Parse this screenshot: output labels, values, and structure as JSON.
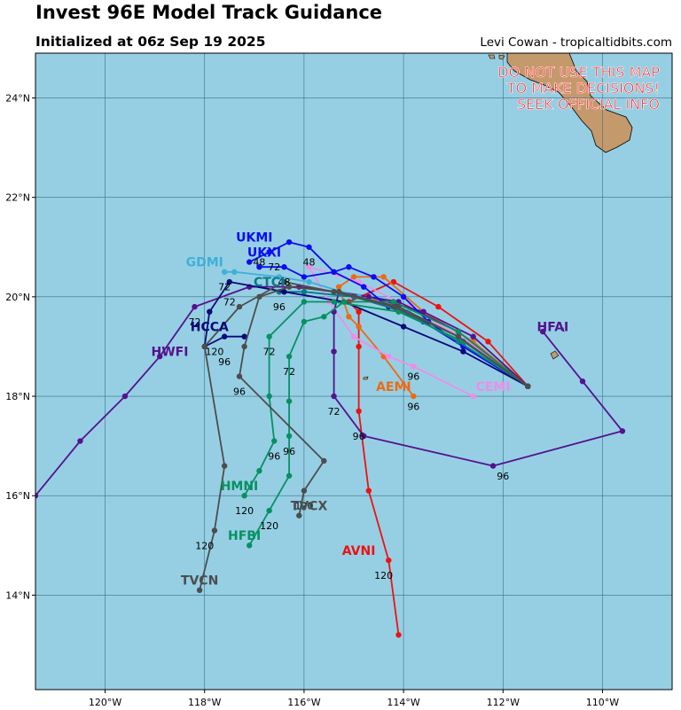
{
  "header": {
    "title": "Invest 96E Model Track Guidance",
    "subtitle": "Initialized at 06z Sep 19 2025",
    "credit": "Levi Cowan - tropicaltidbits.com"
  },
  "warning": [
    "DO NOT USE THIS MAP",
    "TO MAKE DECISIONS!",
    "SEEK OFFICIAL INFO"
  ],
  "colors": {
    "ocean": "#96cfe4",
    "land": "#c49a6c",
    "warning": "#ff1a1a"
  },
  "chart_data": {
    "type": "map-tracks",
    "lon_range": [
      -121.4,
      -108.6
    ],
    "lat_range": [
      12.1,
      24.9
    ],
    "grid": true,
    "x_ticks": [
      {
        "value": -120,
        "label": "120°W"
      },
      {
        "value": -118,
        "label": "118°W"
      },
      {
        "value": -116,
        "label": "116°W"
      },
      {
        "value": -114,
        "label": "114°W"
      },
      {
        "value": -112,
        "label": "112°W"
      },
      {
        "value": -110,
        "label": "110°W"
      }
    ],
    "y_ticks": [
      {
        "value": 14,
        "label": "14°N"
      },
      {
        "value": 16,
        "label": "16°N"
      },
      {
        "value": 18,
        "label": "18°N"
      },
      {
        "value": 20,
        "label": "20°N"
      },
      {
        "value": 22,
        "label": "22°N"
      },
      {
        "value": 24,
        "label": "24°N"
      }
    ],
    "origin": [
      -111.5,
      18.2
    ],
    "series": [
      {
        "name": "AVNI",
        "color": "#ee1111",
        "track": [
          [
            -111.5,
            18.2
          ],
          [
            -112.3,
            19.1
          ],
          [
            -113.3,
            19.8
          ],
          [
            -114.2,
            20.3
          ],
          [
            -115.1,
            19.9
          ],
          [
            -114.9,
            19.7
          ],
          [
            -114.9,
            19.0
          ],
          [
            -114.9,
            17.7
          ],
          [
            -114.7,
            16.1
          ],
          [
            -114.3,
            14.7
          ],
          [
            -114.1,
            13.2
          ]
        ],
        "label_pos": [
          -114.9,
          14.9
        ],
        "hour_labels": [
          {
            "text": "96",
            "pos": [
              -114.9,
              17.2
            ]
          },
          {
            "text": "120",
            "pos": [
              -114.4,
              14.4
            ]
          }
        ]
      },
      {
        "name": "AEMI",
        "color": "#ee6a11",
        "track": [
          [
            -111.5,
            18.2
          ],
          [
            -112.6,
            19.1
          ],
          [
            -113.6,
            19.7
          ],
          [
            -114.4,
            20.4
          ],
          [
            -115.0,
            20.4
          ],
          [
            -115.3,
            20.2
          ],
          [
            -115.1,
            19.6
          ],
          [
            -114.9,
            19.4
          ],
          [
            -114.4,
            18.8
          ],
          [
            -113.8,
            18.0
          ]
        ],
        "label_pos": [
          -114.2,
          18.2
        ],
        "hour_labels": [
          {
            "text": "96",
            "pos": [
              -113.8,
              17.8
            ]
          }
        ]
      },
      {
        "name": "CEMI",
        "color": "#f08ce8",
        "track": [
          [
            -111.5,
            18.2
          ],
          [
            -112.7,
            19.1
          ],
          [
            -113.9,
            19.8
          ],
          [
            -114.9,
            20.3
          ],
          [
            -115.9,
            20.6
          ],
          [
            -115.5,
            19.9
          ],
          [
            -115.0,
            19.2
          ],
          [
            -114.3,
            18.8
          ],
          [
            -113.8,
            18.6
          ],
          [
            -112.6,
            18.0
          ]
        ],
        "label_pos": [
          -112.2,
          18.2
        ],
        "hour_labels": [
          {
            "text": "96",
            "pos": [
              -113.8,
              18.4
            ]
          }
        ]
      },
      {
        "name": "HFAI",
        "color": "#55128f",
        "track": [
          [
            -111.5,
            18.2
          ],
          [
            -112.9,
            19.3
          ],
          [
            -114.1,
            19.9
          ],
          [
            -115.3,
            20.1
          ],
          [
            -115.4,
            19.7
          ],
          [
            -115.4,
            18.9
          ],
          [
            -115.4,
            18.0
          ],
          [
            -114.8,
            17.2
          ],
          [
            -112.2,
            16.6
          ],
          [
            -109.6,
            17.3
          ],
          [
            -110.4,
            18.3
          ],
          [
            -111.2,
            19.3
          ]
        ],
        "label_pos": [
          -111.0,
          19.4
        ],
        "hour_labels": [
          {
            "text": "72",
            "pos": [
              -115.4,
              17.7
            ]
          },
          {
            "text": "96",
            "pos": [
              -112.0,
              16.4
            ]
          }
        ]
      },
      {
        "name": "HWFI",
        "color": "#55128f",
        "track": [
          [
            -111.5,
            18.2
          ],
          [
            -112.6,
            19.2
          ],
          [
            -113.6,
            19.7
          ],
          [
            -114.7,
            20.0
          ],
          [
            -116.1,
            20.2
          ],
          [
            -117.1,
            20.2
          ],
          [
            -118.2,
            19.8
          ],
          [
            -118.9,
            18.8
          ],
          [
            -119.6,
            18.0
          ],
          [
            -120.5,
            17.1
          ],
          [
            -121.4,
            16.0
          ]
        ],
        "label_pos": [
          -118.7,
          18.9
        ],
        "hour_labels": [
          {
            "text": "72",
            "pos": [
              -118.2,
              19.5
            ]
          }
        ]
      },
      {
        "name": "UKMI",
        "color": "#0d0df0",
        "track": [
          [
            -111.5,
            18.2
          ],
          [
            -112.8,
            19.0
          ],
          [
            -113.5,
            19.5
          ],
          [
            -114.0,
            20.0
          ],
          [
            -114.6,
            20.4
          ],
          [
            -115.1,
            20.6
          ],
          [
            -115.4,
            20.5
          ],
          [
            -115.9,
            21.0
          ],
          [
            -116.3,
            21.1
          ],
          [
            -116.7,
            20.9
          ],
          [
            -117.1,
            20.7
          ]
        ],
        "label_pos": [
          -117.0,
          21.2
        ],
        "hour_labels": [
          {
            "text": "48",
            "pos": [
              -115.9,
              20.7
            ]
          }
        ]
      },
      {
        "name": "UKXI",
        "color": "#0d0df0",
        "track": [
          [
            -111.5,
            18.2
          ],
          [
            -112.8,
            19.0
          ],
          [
            -113.6,
            19.5
          ],
          [
            -114.3,
            19.8
          ],
          [
            -114.8,
            20.2
          ],
          [
            -115.4,
            20.5
          ],
          [
            -116.0,
            20.4
          ],
          [
            -116.4,
            20.6
          ],
          [
            -116.9,
            20.6
          ]
        ],
        "label_pos": [
          -116.8,
          20.9
        ],
        "hour_labels": [
          {
            "text": "48",
            "pos": [
              -116.9,
              20.7
            ]
          },
          {
            "text": "72",
            "pos": [
              -116.6,
              20.6
            ]
          }
        ]
      },
      {
        "name": "GDMI",
        "color": "#3fb0d8",
        "track": [
          [
            -111.5,
            18.2
          ],
          [
            -112.9,
            19.2
          ],
          [
            -113.9,
            19.7
          ],
          [
            -114.9,
            20.0
          ],
          [
            -115.9,
            20.3
          ],
          [
            -116.5,
            20.4
          ],
          [
            -117.4,
            20.5
          ],
          [
            -117.6,
            20.5
          ]
        ],
        "label_pos": [
          -118.0,
          20.7
        ],
        "hour_labels": [
          {
            "text": "72",
            "pos": [
              -117.6,
              20.2
            ]
          }
        ]
      },
      {
        "name": "CTCI",
        "color": "#0a7a8a",
        "track": [
          [
            -111.5,
            18.2
          ],
          [
            -112.9,
            19.1
          ],
          [
            -114.0,
            19.7
          ],
          [
            -115.0,
            20.0
          ],
          [
            -116.0,
            20.1
          ],
          [
            -116.5,
            20.1
          ]
        ],
        "label_pos": [
          -116.7,
          20.3
        ],
        "hour_labels": [
          {
            "text": "48",
            "pos": [
              -116.4,
              20.3
            ]
          },
          {
            "text": "96",
            "pos": [
              -116.5,
              19.8
            ]
          }
        ]
      },
      {
        "name": "HCCA",
        "color": "#0a0a7a",
        "track": [
          [
            -111.5,
            18.2
          ],
          [
            -112.8,
            18.9
          ],
          [
            -114.0,
            19.4
          ],
          [
            -115.2,
            19.9
          ],
          [
            -116.4,
            20.1
          ],
          [
            -117.5,
            20.3
          ],
          [
            -117.9,
            19.7
          ],
          [
            -118.0,
            19.0
          ],
          [
            -117.6,
            19.2
          ],
          [
            -117.2,
            19.2
          ]
        ],
        "label_pos": [
          -117.9,
          19.4
        ],
        "hour_labels": [
          {
            "text": "72",
            "pos": [
              -117.5,
              19.9
            ]
          },
          {
            "text": "96",
            "pos": [
              -117.6,
              18.7
            ]
          },
          {
            "text": "120",
            "pos": [
              -117.8,
              18.9
            ]
          }
        ]
      },
      {
        "name": "HMNI",
        "color": "#079062",
        "track": [
          [
            -111.5,
            18.2
          ],
          [
            -112.8,
            19.1
          ],
          [
            -114.1,
            19.7
          ],
          [
            -115.4,
            19.9
          ],
          [
            -116.0,
            19.9
          ],
          [
            -116.7,
            19.2
          ],
          [
            -116.7,
            18.0
          ],
          [
            -116.6,
            17.1
          ],
          [
            -116.9,
            16.5
          ],
          [
            -117.2,
            16.0
          ]
        ],
        "label_pos": [
          -117.3,
          16.2
        ],
        "hour_labels": [
          {
            "text": "72",
            "pos": [
              -116.7,
              18.9
            ]
          },
          {
            "text": "96",
            "pos": [
              -116.6,
              16.8
            ]
          },
          {
            "text": "120",
            "pos": [
              -117.2,
              15.7
            ]
          }
        ]
      },
      {
        "name": "HFBI",
        "color": "#079062",
        "track": [
          [
            -111.5,
            18.2
          ],
          [
            -112.9,
            19.3
          ],
          [
            -114.2,
            19.9
          ],
          [
            -115.2,
            19.9
          ],
          [
            -115.6,
            19.6
          ],
          [
            -116.0,
            19.5
          ],
          [
            -116.3,
            18.8
          ],
          [
            -116.3,
            17.9
          ],
          [
            -116.3,
            17.2
          ],
          [
            -116.3,
            16.4
          ],
          [
            -116.7,
            15.7
          ],
          [
            -117.1,
            15.0
          ]
        ],
        "label_pos": [
          -117.2,
          15.2
        ],
        "hour_labels": [
          {
            "text": "72",
            "pos": [
              -116.3,
              18.5
            ]
          },
          {
            "text": "96",
            "pos": [
              -116.3,
              16.9
            ]
          },
          {
            "text": "120",
            "pos": [
              -116.7,
              15.4
            ]
          }
        ]
      },
      {
        "name": "TVCN",
        "color": "#4d4d4d",
        "track": [
          [
            -111.5,
            18.2
          ],
          [
            -112.9,
            19.2
          ],
          [
            -114.2,
            19.8
          ],
          [
            -115.4,
            20.1
          ],
          [
            -116.4,
            20.3
          ],
          [
            -117.3,
            19.8
          ],
          [
            -118.0,
            19.0
          ],
          [
            -117.6,
            16.6
          ],
          [
            -117.8,
            15.3
          ],
          [
            -118.1,
            14.1
          ]
        ],
        "label_pos": [
          -118.1,
          14.3
        ],
        "hour_labels": [
          {
            "text": "120",
            "pos": [
              -118.0,
              15.0
            ]
          }
        ]
      },
      {
        "name": "TVCX",
        "color": "#4d4d4d",
        "track": [
          [
            -111.5,
            18.2
          ],
          [
            -112.9,
            19.2
          ],
          [
            -114.1,
            19.8
          ],
          [
            -115.3,
            20.1
          ],
          [
            -116.3,
            20.2
          ],
          [
            -116.9,
            20.0
          ],
          [
            -117.2,
            19.0
          ],
          [
            -117.3,
            18.4
          ],
          [
            -115.6,
            16.7
          ],
          [
            -116.0,
            16.1
          ],
          [
            -116.1,
            15.6
          ]
        ],
        "label_pos": [
          -115.9,
          15.8
        ],
        "hour_labels": [
          {
            "text": "96",
            "pos": [
              -117.3,
              18.1
            ]
          },
          {
            "text": "120",
            "pos": [
              -116.0,
              15.8
            ]
          }
        ]
      }
    ]
  }
}
